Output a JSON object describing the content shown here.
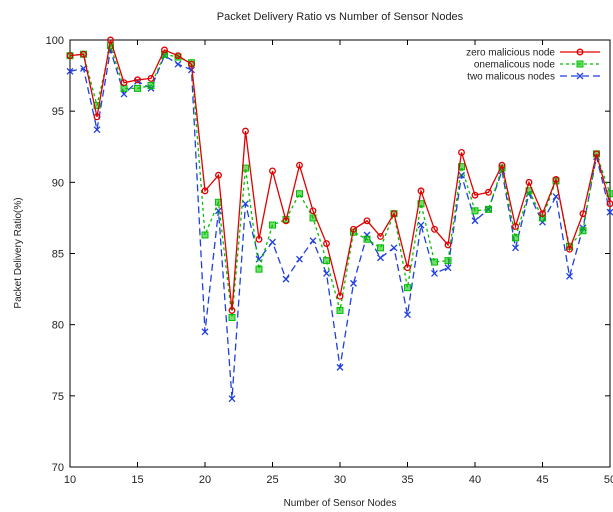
{
  "chart_data": {
    "type": "line",
    "title": "Packet Delivery Ratio vs Number of Sensor Nodes",
    "xlabel": "Number of Sensor Nodes",
    "ylabel": "Packet Delivery Ratio(%)",
    "xlim": [
      10,
      50
    ],
    "ylim": [
      70,
      100
    ],
    "xticks": [
      10,
      15,
      20,
      25,
      30,
      35,
      40,
      45,
      50
    ],
    "yticks": [
      70,
      75,
      80,
      85,
      90,
      95,
      100
    ],
    "grid": false,
    "legend_position": "top-right",
    "x": [
      10,
      11,
      12,
      13,
      14,
      15,
      16,
      17,
      18,
      19,
      20,
      21,
      22,
      23,
      24,
      25,
      26,
      27,
      28,
      29,
      30,
      31,
      32,
      33,
      34,
      35,
      36,
      37,
      38,
      39,
      40,
      41,
      42,
      43,
      44,
      45,
      46,
      47,
      48,
      49,
      50
    ],
    "series": [
      {
        "name": "zero malicious node",
        "color": "#e00000",
        "dash": "",
        "marker": "circle",
        "values": [
          98.9,
          99.0,
          94.6,
          100.0,
          97.0,
          97.2,
          97.3,
          99.3,
          98.9,
          98.3,
          89.4,
          90.5,
          81.0,
          93.6,
          86.0,
          90.8,
          87.3,
          91.2,
          88.0,
          85.7,
          82.0,
          86.7,
          87.3,
          86.2,
          87.8,
          84.0,
          89.4,
          86.7,
          85.6,
          92.1,
          89.1,
          89.3,
          91.2,
          86.9,
          90.0,
          87.8,
          90.2,
          85.3,
          87.8,
          92.0,
          88.5
        ]
      },
      {
        "name": "onemalicous node",
        "color": "#00c000",
        "dash": "3,3",
        "marker": "square",
        "values": [
          98.9,
          99.0,
          95.4,
          99.6,
          96.6,
          96.6,
          96.8,
          99.0,
          98.8,
          98.4,
          86.3,
          88.6,
          80.5,
          91.0,
          83.9,
          87.0,
          87.4,
          89.2,
          87.5,
          84.5,
          81.0,
          86.5,
          86.0,
          85.4,
          87.8,
          82.6,
          88.5,
          84.4,
          84.5,
          91.1,
          88.0,
          88.1,
          91.0,
          86.1,
          89.4,
          87.5,
          90.1,
          85.5,
          86.6,
          92.0,
          89.2
        ]
      },
      {
        "name": "two malicous nodes",
        "color": "#1f3fe0",
        "dash": "7,4",
        "marker": "x",
        "values": [
          97.8,
          98.0,
          93.7,
          99.3,
          96.2,
          97.1,
          96.6,
          98.9,
          98.3,
          97.9,
          79.5,
          88.0,
          74.8,
          88.5,
          84.6,
          85.8,
          83.2,
          84.6,
          85.9,
          83.6,
          77.0,
          82.9,
          86.3,
          84.7,
          85.4,
          80.7,
          87.0,
          83.6,
          84.0,
          90.5,
          87.3,
          88.1,
          90.8,
          85.4,
          89.2,
          87.2,
          89.0,
          83.4,
          86.8,
          91.8,
          87.9
        ]
      }
    ]
  }
}
